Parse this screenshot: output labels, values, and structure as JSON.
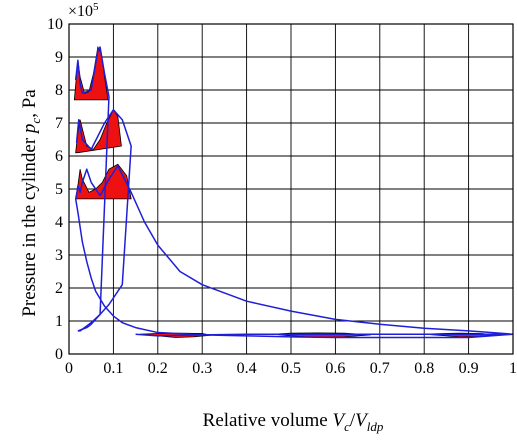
{
  "chart_data": {
    "type": "line",
    "multiplier_label": "×10",
    "multiplier_exponent": "5",
    "xlabel_prefix": "Relative volume ",
    "xlabel_v1": "V",
    "xlabel_v1_sub": "c",
    "xlabel_slash": "/",
    "xlabel_v2": "V",
    "xlabel_v2_sub": "ldp",
    "ylabel_prefix": "Pressure in the cylinder ",
    "ylabel_var": "p",
    "ylabel_var_sub": "c",
    "ylabel_suffix": ", Pa",
    "xlim": [
      0,
      1
    ],
    "ylim": [
      0,
      10
    ],
    "xticks": [
      "0",
      "0.1",
      "0.2",
      "0.3",
      "0.4",
      "0.5",
      "0.6",
      "0.7",
      "0.8",
      "0.9",
      "1"
    ],
    "yticks": [
      "0",
      "1",
      "2",
      "3",
      "4",
      "5",
      "6",
      "7",
      "8",
      "9",
      "10"
    ],
    "grid": true,
    "line_color": "#1f1fd8",
    "fill_color": "#ee1111",
    "series": [
      {
        "x": [
          1.0,
          0.95,
          0.9,
          0.8,
          0.7,
          0.6,
          0.5,
          0.4,
          0.3,
          0.25,
          0.2,
          0.17,
          0.14,
          0.11,
          0.09,
          0.07,
          0.05,
          0.04,
          0.03,
          0.025,
          0.02,
          0.018,
          0.015
        ],
        "y": [
          0.6,
          0.65,
          0.7,
          0.78,
          0.9,
          1.05,
          1.3,
          1.6,
          2.1,
          2.5,
          3.3,
          4.0,
          4.9,
          5.7,
          5.3,
          4.8,
          5.2,
          5.6,
          5.2,
          4.9,
          5.1,
          4.9,
          4.7
        ]
      },
      {
        "x": [
          0.015,
          0.02,
          0.03,
          0.04,
          0.05,
          0.06,
          0.08,
          0.1,
          0.12,
          0.15,
          0.2,
          0.3,
          0.4,
          0.5,
          0.6,
          0.7,
          0.8,
          0.9,
          1.0
        ],
        "y": [
          4.7,
          4.3,
          3.4,
          2.8,
          2.3,
          1.9,
          1.45,
          1.15,
          0.95,
          0.8,
          0.65,
          0.58,
          0.55,
          0.52,
          0.5,
          0.5,
          0.5,
          0.5,
          0.6
        ]
      },
      {
        "x": [
          0.017,
          0.022,
          0.03,
          0.05,
          0.08,
          0.1,
          0.12,
          0.14,
          0.12,
          0.09,
          0.07,
          0.05,
          0.04,
          0.03,
          0.025,
          0.02
        ],
        "y": [
          6.4,
          7.1,
          6.5,
          6.2,
          7.0,
          7.4,
          7.1,
          6.3,
          2.1,
          1.5,
          1.2,
          0.95,
          0.85,
          0.75,
          0.7,
          0.7
        ]
      },
      {
        "x": [
          0.015,
          0.02,
          0.025,
          0.03,
          0.05,
          0.065,
          0.07,
          0.08,
          0.09,
          0.07,
          0.05,
          0.04,
          0.03,
          0.02
        ],
        "y": [
          8.3,
          8.9,
          8.2,
          7.9,
          8.0,
          9.2,
          9.3,
          8.5,
          7.8,
          1.2,
          0.9,
          0.8,
          0.75,
          0.7
        ]
      },
      {
        "x": [
          0.15,
          0.2,
          0.3,
          0.4,
          0.5,
          0.6,
          0.7,
          0.8,
          0.9,
          1.0
        ],
        "y": [
          0.6,
          0.55,
          0.58,
          0.6,
          0.6,
          0.6,
          0.6,
          0.6,
          0.6,
          0.6
        ]
      }
    ],
    "fills": [
      {
        "x": [
          0.015,
          0.02,
          0.025,
          0.03,
          0.045,
          0.06,
          0.075,
          0.09,
          0.11,
          0.13,
          0.14,
          0.015
        ],
        "y": [
          4.7,
          5.1,
          5.6,
          5.3,
          4.9,
          5.0,
          5.2,
          5.6,
          5.75,
          5.4,
          4.7,
          4.7
        ]
      },
      {
        "x": [
          0.015,
          0.02,
          0.025,
          0.04,
          0.055,
          0.07,
          0.085,
          0.1,
          0.11,
          0.118,
          0.02
        ],
        "y": [
          6.1,
          6.7,
          7.1,
          6.3,
          6.2,
          6.5,
          7.0,
          7.4,
          7.2,
          6.3,
          6.1
        ]
      },
      {
        "x": [
          0.012,
          0.02,
          0.025,
          0.035,
          0.045,
          0.055,
          0.065,
          0.073,
          0.08,
          0.088,
          0.012
        ],
        "y": [
          7.7,
          8.9,
          8.4,
          7.9,
          7.95,
          8.5,
          9.3,
          9.1,
          8.4,
          7.7,
          7.7
        ]
      },
      {
        "x": [
          0.16,
          0.2,
          0.24,
          0.28,
          0.32,
          0.3,
          0.25,
          0.2
        ],
        "y": [
          0.6,
          0.55,
          0.5,
          0.52,
          0.57,
          0.62,
          0.63,
          0.62
        ]
      },
      {
        "x": [
          0.46,
          0.5,
          0.56,
          0.62,
          0.68,
          0.62,
          0.56,
          0.5
        ],
        "y": [
          0.6,
          0.55,
          0.5,
          0.52,
          0.58,
          0.63,
          0.64,
          0.63
        ]
      },
      {
        "x": [
          0.8,
          0.84,
          0.88,
          0.92,
          0.96,
          0.93,
          0.88,
          0.84
        ],
        "y": [
          0.6,
          0.56,
          0.52,
          0.53,
          0.58,
          0.62,
          0.63,
          0.62
        ]
      }
    ]
  }
}
